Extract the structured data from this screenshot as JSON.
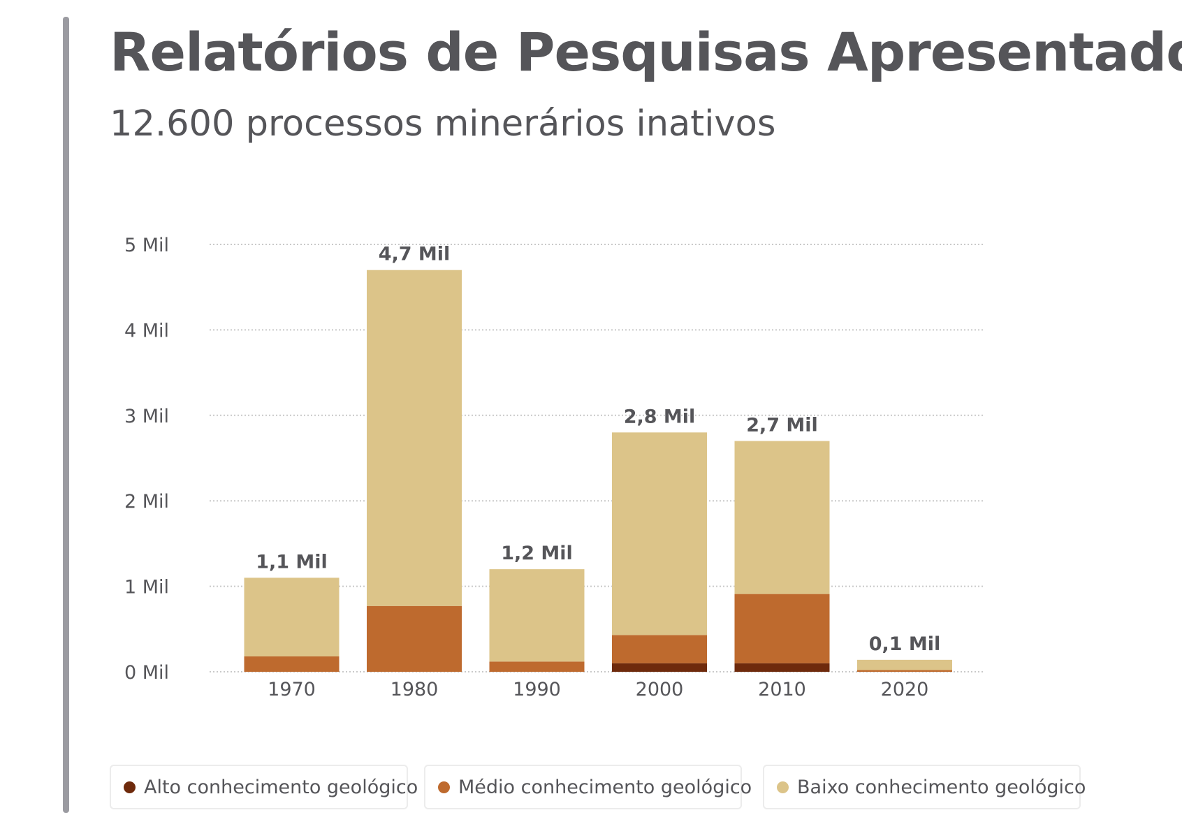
{
  "title": "Relatórios de Pesquisas Apresentados",
  "subtitle": "12.600 processos minerários inativos",
  "colors": {
    "alto": "#6e2a0c",
    "medio": "#be6a2e",
    "baixo": "#dcc489",
    "grid": "#c9c9c9",
    "text": "#555559"
  },
  "chart_data": {
    "type": "bar",
    "stacked": true,
    "categories": [
      "1970",
      "1980",
      "1990",
      "2000",
      "2010",
      "2020"
    ],
    "series": [
      {
        "name": "Alto conhecimento geológico",
        "values": [
          0,
          0,
          0,
          0.1,
          0.1,
          0
        ]
      },
      {
        "name": "Médio conhecimento geológico",
        "values": [
          0.18,
          0.77,
          0.12,
          0.33,
          0.81,
          0.02
        ]
      },
      {
        "name": "Baixo conhecimento geológico",
        "values": [
          0.92,
          3.93,
          1.08,
          2.37,
          1.79,
          0.12
        ]
      }
    ],
    "total_labels": [
      "1,1 Mil",
      "4,7 Mil",
      "1,2 Mil",
      "2,8 Mil",
      "2,7 Mil",
      "0,1 Mil"
    ],
    "totals": [
      1.1,
      4.7,
      1.2,
      2.8,
      2.7,
      0.14
    ],
    "y_ticks": [
      0,
      1,
      2,
      3,
      4,
      5
    ],
    "y_tick_labels": [
      "0 Mil",
      "1 Mil",
      "2 Mil",
      "3 Mil",
      "4 Mil",
      "5 Mil"
    ],
    "ylim": [
      0,
      5
    ],
    "grid": true,
    "legend_position": "bottom"
  },
  "legend": [
    {
      "label": "Alto conhecimento geológico",
      "color": "#6e2a0c"
    },
    {
      "label": "Médio conhecimento geológico",
      "color": "#be6a2e"
    },
    {
      "label": "Baixo conhecimento geológico",
      "color": "#dcc489"
    }
  ]
}
